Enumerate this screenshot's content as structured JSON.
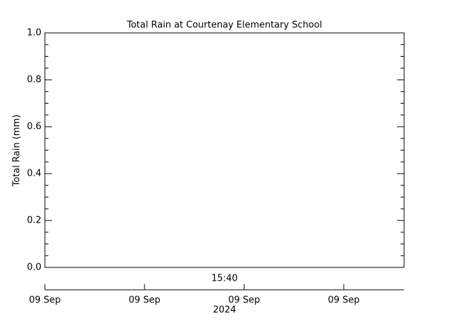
{
  "chart_data": {
    "type": "line",
    "title": "Total Rain at Courtenay Elementary School",
    "y_label": "Total Rain (mm)",
    "ylim": [
      0,
      1
    ],
    "yticks": [
      {
        "value": 0,
        "label": "0.0"
      },
      0.2,
      0.4,
      0.6,
      0.8,
      {
        "value": 1,
        "label": "1.0"
      }
    ],
    "annotation": "15:40",
    "x_tick_labels": [
      "09 Sep",
      "09 Sep",
      "09 Sep",
      "09 Sep"
    ],
    "x_year_label": "2024"
  }
}
